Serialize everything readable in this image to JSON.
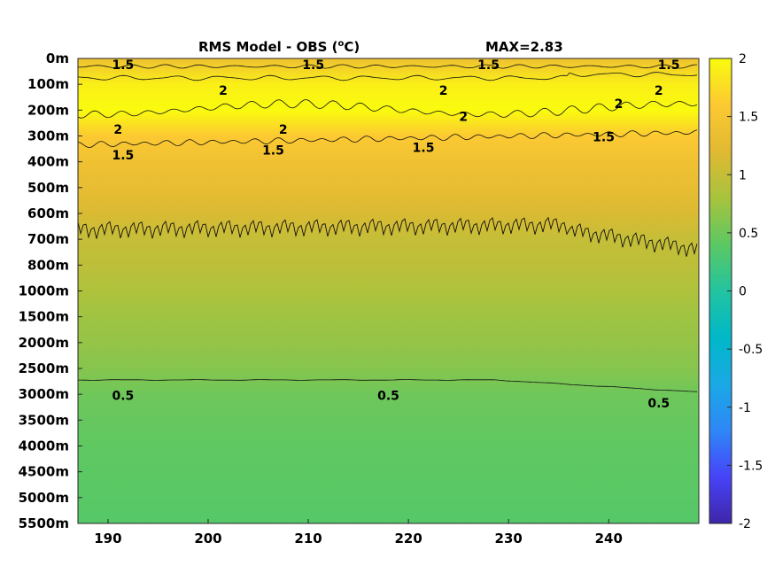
{
  "chart_data": {
    "type": "heatmap",
    "title": "RMS Model - OBS (",
    "title_superscript": "o",
    "title_suffix": "C)",
    "max_label": "MAX=2.83",
    "x": [
      190,
      200,
      210,
      220,
      230,
      240
    ],
    "xlim": [
      187,
      249
    ],
    "y_tick_labels": [
      "0m",
      "100m",
      "200m",
      "300m",
      "400m",
      "500m",
      "600m",
      "700m",
      "800m",
      "1000m",
      "1500m",
      "2000m",
      "2500m",
      "3000m",
      "3500m",
      "4000m",
      "4500m",
      "5000m",
      "5500m"
    ],
    "colorbar": {
      "range": [
        -2,
        2
      ],
      "tick_labels": [
        "2",
        "1.5",
        "1",
        "0.5",
        "0",
        "-0.5",
        "-1",
        "-1.5",
        "-2"
      ],
      "colormap": [
        "#3e26a8",
        "#4743f8",
        "#2e87f7",
        "#1aa9e5",
        "#00b8c8",
        "#22c4a0",
        "#5cc863",
        "#a8c33d",
        "#e1b932",
        "#fcc932",
        "#f9fb0e"
      ]
    },
    "depth_profile": {
      "depths": [
        "0m",
        "100m",
        "200m",
        "300m",
        "400m",
        "500m",
        "600m",
        "700m",
        "800m",
        "1000m",
        "1500m",
        "2000m",
        "2500m",
        "3000m",
        "3500m",
        "4000m",
        "4500m",
        "5000m",
        "5500m"
      ],
      "rms_values": [
        1.4,
        1.9,
        2.0,
        1.6,
        1.4,
        1.3,
        1.15,
        1.0,
        0.95,
        0.85,
        0.75,
        0.7,
        0.62,
        0.5,
        0.45,
        0.42,
        0.4,
        0.38,
        0.36
      ]
    },
    "contour_labels": [
      {
        "text": "1.5",
        "lon": 191.5,
        "depth": "0m"
      },
      {
        "text": "1.5",
        "lon": 210.5,
        "depth": "0m"
      },
      {
        "text": "1.5",
        "lon": 228.0,
        "depth": "0m"
      },
      {
        "text": "1.5",
        "lon": 246.0,
        "depth": "0m"
      },
      {
        "text": "2",
        "lon": 201.5,
        "depth": "100m"
      },
      {
        "text": "2",
        "lon": 223.5,
        "depth": "100m"
      },
      {
        "text": "2",
        "lon": 245.0,
        "depth": "100m"
      },
      {
        "text": "2",
        "lon": 191.0,
        "depth": "250m"
      },
      {
        "text": "2",
        "lon": 207.5,
        "depth": "250m"
      },
      {
        "text": "2",
        "lon": 225.5,
        "depth": "200m"
      },
      {
        "text": "2",
        "lon": 241.0,
        "depth": "150m"
      },
      {
        "text": "1.5",
        "lon": 191.5,
        "depth": "350m"
      },
      {
        "text": "1.5",
        "lon": 206.5,
        "depth": "330m"
      },
      {
        "text": "1.5",
        "lon": 221.5,
        "depth": "320m"
      },
      {
        "text": "1.5",
        "lon": 239.5,
        "depth": "280m"
      },
      {
        "text": "0.5",
        "lon": 191.5,
        "depth": "2900m"
      },
      {
        "text": "0.5",
        "lon": 218.0,
        "depth": "2900m"
      },
      {
        "text": "0.5",
        "lon": 245.0,
        "depth": "3050m"
      }
    ]
  }
}
